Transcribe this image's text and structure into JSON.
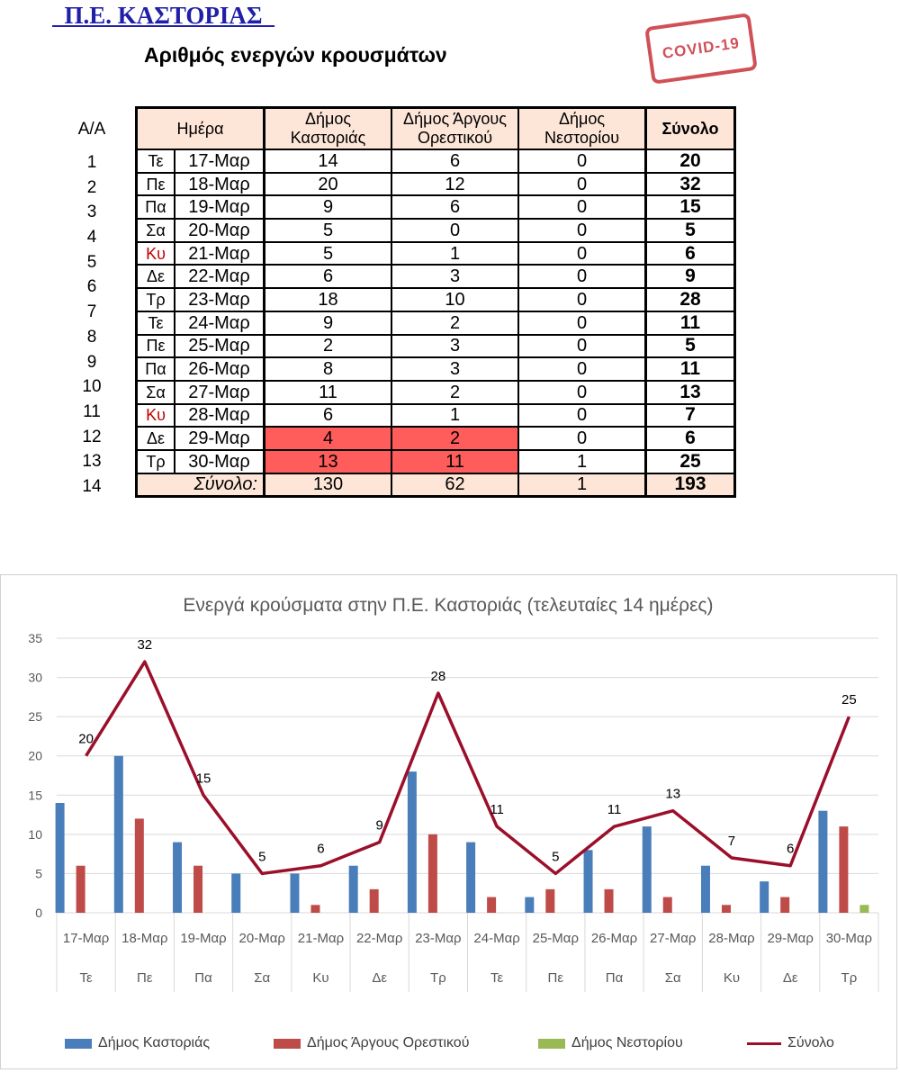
{
  "header": {
    "region": "  Π.Ε. ΚΑΣΤΟΡΙΑΣ  ",
    "subtitle": "Αριθμός ενεργών κρουσμάτων",
    "stamp": "COVID-19"
  },
  "table": {
    "aa_label": "Α/Α",
    "columns": {
      "day": "Ημέρα",
      "kastoria": "Δήμος Καστοριάς",
      "argos": "Δήμος Άργους Ορεστικού",
      "nestorio": "Δήμος Νεστορίου",
      "total": "Σύνολο"
    },
    "rows": [
      {
        "aa": "1",
        "day": "Τε",
        "date": "17-Μαρ",
        "kastoria": "14",
        "argos": "6",
        "nestorio": "0",
        "total": "20"
      },
      {
        "aa": "2",
        "day": "Πε",
        "date": "18-Μαρ",
        "kastoria": "20",
        "argos": "12",
        "nestorio": "0",
        "total": "32"
      },
      {
        "aa": "3",
        "day": "Πα",
        "date": "19-Μαρ",
        "kastoria": "9",
        "argos": "6",
        "nestorio": "0",
        "total": "15"
      },
      {
        "aa": "4",
        "day": "Σα",
        "date": "20-Μαρ",
        "kastoria": "5",
        "argos": "0",
        "nestorio": "0",
        "total": "5"
      },
      {
        "aa": "5",
        "day": "Κυ",
        "date": "21-Μαρ",
        "kastoria": "5",
        "argos": "1",
        "nestorio": "0",
        "total": "6"
      },
      {
        "aa": "6",
        "day": "Δε",
        "date": "22-Μαρ",
        "kastoria": "6",
        "argos": "3",
        "nestorio": "0",
        "total": "9"
      },
      {
        "aa": "7",
        "day": "Τρ",
        "date": "23-Μαρ",
        "kastoria": "18",
        "argos": "10",
        "nestorio": "0",
        "total": "28"
      },
      {
        "aa": "8",
        "day": "Τε",
        "date": "24-Μαρ",
        "kastoria": "9",
        "argos": "2",
        "nestorio": "0",
        "total": "11"
      },
      {
        "aa": "9",
        "day": "Πε",
        "date": "25-Μαρ",
        "kastoria": "2",
        "argos": "3",
        "nestorio": "0",
        "total": "5"
      },
      {
        "aa": "10",
        "day": "Πα",
        "date": "26-Μαρ",
        "kastoria": "8",
        "argos": "3",
        "nestorio": "0",
        "total": "11"
      },
      {
        "aa": "11",
        "day": "Σα",
        "date": "27-Μαρ",
        "kastoria": "11",
        "argos": "2",
        "nestorio": "0",
        "total": "13"
      },
      {
        "aa": "12",
        "day": "Κυ",
        "date": "28-Μαρ",
        "kastoria": "6",
        "argos": "1",
        "nestorio": "0",
        "total": "7"
      },
      {
        "aa": "13",
        "day": "Δε",
        "date": "29-Μαρ",
        "kastoria": "4",
        "argos": "2",
        "nestorio": "0",
        "total": "6"
      },
      {
        "aa": "14",
        "day": "Τρ",
        "date": "30-Μαρ",
        "kastoria": "13",
        "argos": "11",
        "nestorio": "1",
        "total": "25"
      }
    ],
    "totals": {
      "label": "Σύνολο:",
      "kastoria": "130",
      "argos": "62",
      "nestorio": "1",
      "total": "193"
    },
    "colors": {
      "header_bg": "#fde6d8",
      "highlight": "#ff5c5c",
      "sunday_text": "#c00000"
    }
  },
  "chart_data": {
    "type": "bar",
    "title": "Ενεργά κρούσματα στην Π.Ε. Καστοριάς (τελευταίες 14 ημέρες)",
    "categories": [
      "17-Μαρ",
      "18-Μαρ",
      "19-Μαρ",
      "20-Μαρ",
      "21-Μαρ",
      "22-Μαρ",
      "23-Μαρ",
      "24-Μαρ",
      "25-Μαρ",
      "26-Μαρ",
      "27-Μαρ",
      "28-Μαρ",
      "29-Μαρ",
      "30-Μαρ"
    ],
    "subcategories": [
      "Τε",
      "Πε",
      "Πα",
      "Σα",
      "Κυ",
      "Δε",
      "Τρ",
      "Τε",
      "Πε",
      "Πα",
      "Σα",
      "Κυ",
      "Δε",
      "Τρ"
    ],
    "series": [
      {
        "name": "Δήμος Καστοριάς",
        "type": "bar",
        "color": "#4a7ebb",
        "values": [
          14,
          20,
          9,
          5,
          5,
          6,
          18,
          9,
          2,
          8,
          11,
          6,
          4,
          13
        ]
      },
      {
        "name": "Δήμος Άργους Ορεστικού",
        "type": "bar",
        "color": "#be4b48",
        "values": [
          6,
          12,
          6,
          0,
          1,
          3,
          10,
          2,
          3,
          3,
          2,
          1,
          2,
          11
        ]
      },
      {
        "name": "Δήμος Νεστορίου",
        "type": "bar",
        "color": "#98b954",
        "values": [
          0,
          0,
          0,
          0,
          0,
          0,
          0,
          0,
          0,
          0,
          0,
          0,
          0,
          1
        ]
      },
      {
        "name": "Σύνολο",
        "type": "line",
        "color": "#9b0f2a",
        "values": [
          20,
          32,
          15,
          5,
          6,
          9,
          28,
          11,
          5,
          11,
          13,
          7,
          6,
          25
        ]
      }
    ],
    "ylim": [
      0,
      35
    ],
    "yticks": [
      0,
      5,
      10,
      15,
      20,
      25,
      30,
      35
    ],
    "grid": true,
    "legend": "bottom"
  }
}
